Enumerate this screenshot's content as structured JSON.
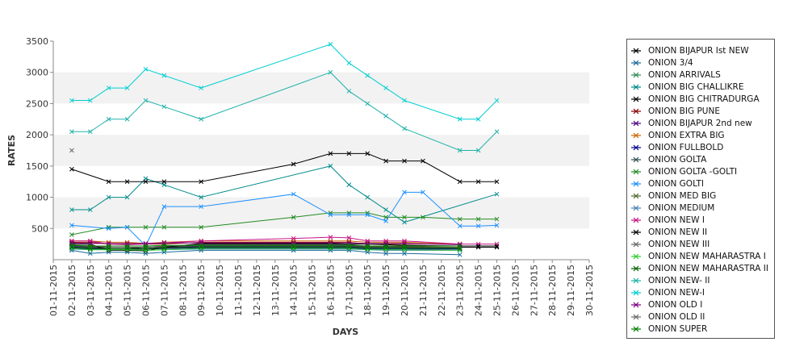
{
  "chart_data": {
    "type": "line",
    "title": "",
    "xlabel": "DAYS",
    "ylabel": "RATES",
    "ylim": [
      0,
      3500
    ],
    "yticks": [
      500,
      1000,
      1500,
      2000,
      2500,
      3000,
      3500
    ],
    "legend_position": "right",
    "x": [
      "01-11-2015",
      "02-11-2015",
      "03-11-2015",
      "04-11-2015",
      "05-11-2015",
      "06-11-2015",
      "07-11-2015",
      "08-11-2015",
      "09-11-2015",
      "10-11-2015",
      "11-11-2015",
      "12-11-2015",
      "13-11-2015",
      "14-11-2015",
      "15-11-2015",
      "16-11-2015",
      "17-11-2015",
      "18-11-2015",
      "19-11-2015",
      "20-11-2015",
      "21-11-2015",
      "22-11-2015",
      "23-11-2015",
      "24-11-2015",
      "25-11-2015",
      "26-11-2015",
      "27-11-2015",
      "28-11-2015",
      "29-11-2015",
      "30-11-2015"
    ],
    "series": [
      {
        "name": " ONION BIJAPUR Ist NEW",
        "color": "#000000",
        "values": [
          null,
          250,
          200,
          200,
          200,
          180,
          200,
          null,
          250,
          null,
          null,
          null,
          null,
          250,
          null,
          250,
          250,
          200,
          200,
          200,
          200,
          null,
          200,
          200,
          200,
          null,
          null,
          null,
          null,
          null
        ]
      },
      {
        "name": "ONION 3/4",
        "color": "#1a6a9a",
        "values": [
          null,
          150,
          100,
          120,
          120,
          100,
          120,
          null,
          150,
          null,
          null,
          null,
          null,
          150,
          null,
          150,
          150,
          120,
          100,
          100,
          null,
          null,
          80,
          null,
          null,
          null,
          null,
          null,
          null,
          null
        ]
      },
      {
        "name": "ONION ARRIVALS",
        "color": "#2e8b57",
        "values": [
          null,
          200,
          180,
          180,
          180,
          180,
          200,
          null,
          200,
          null,
          null,
          null,
          null,
          200,
          null,
          200,
          200,
          180,
          180,
          180,
          null,
          null,
          180,
          null,
          null,
          null,
          null,
          null,
          null,
          null
        ]
      },
      {
        "name": "ONION BIG CHALLIKRE",
        "color": "#008b8b",
        "values": [
          null,
          800,
          800,
          1000,
          1000,
          1300,
          1200,
          null,
          1000,
          null,
          null,
          null,
          null,
          null,
          null,
          1500,
          1200,
          1000,
          800,
          600,
          null,
          null,
          null,
          null,
          1050,
          null,
          null,
          null,
          null,
          null
        ]
      },
      {
        "name": "ONION BIG CHITRADURGA",
        "color": "#000000",
        "values": [
          null,
          1450,
          null,
          1250,
          1250,
          1250,
          1250,
          null,
          1250,
          null,
          null,
          null,
          null,
          1530,
          null,
          1700,
          1700,
          1700,
          1580,
          1580,
          1580,
          null,
          1250,
          1250,
          1250,
          null,
          null,
          null,
          null,
          null
        ]
      },
      {
        "name": "ONION BIG PUNE",
        "color": "#8b0000",
        "values": [
          null,
          280,
          280,
          250,
          250,
          250,
          250,
          null,
          280,
          null,
          null,
          null,
          null,
          280,
          null,
          280,
          280,
          250,
          250,
          250,
          null,
          null,
          250,
          null,
          null,
          null,
          null,
          null,
          null,
          null
        ]
      },
      {
        "name": "ONION BIJAPUR 2nd new",
        "color": "#4b0082",
        "values": [
          null,
          220,
          200,
          180,
          180,
          180,
          200,
          null,
          220,
          null,
          null,
          null,
          null,
          220,
          null,
          220,
          220,
          200,
          200,
          200,
          null,
          null,
          200,
          null,
          null,
          null,
          null,
          null,
          null,
          null
        ]
      },
      {
        "name": "ONION EXTRA BIG",
        "color": "#cd6600",
        "values": [
          null,
          300,
          300,
          280,
          280,
          260,
          280,
          null,
          300,
          null,
          null,
          null,
          null,
          300,
          null,
          300,
          300,
          280,
          280,
          280,
          null,
          null,
          250,
          null,
          null,
          null,
          null,
          null,
          null,
          null
        ]
      },
      {
        "name": "ONION FULLBOLD",
        "color": "#00008b",
        "values": [
          null,
          190,
          170,
          170,
          170,
          170,
          180,
          null,
          190,
          null,
          null,
          null,
          null,
          190,
          null,
          190,
          190,
          170,
          170,
          170,
          null,
          null,
          170,
          null,
          null,
          null,
          null,
          null,
          null,
          null
        ]
      },
      {
        "name": "ONION GOLTA",
        "color": "#2f4f4f",
        "values": [
          null,
          210,
          190,
          170,
          170,
          170,
          190,
          null,
          210,
          null,
          null,
          null,
          null,
          210,
          null,
          210,
          210,
          190,
          190,
          190,
          null,
          null,
          190,
          null,
          null,
          null,
          null,
          null,
          null,
          null
        ]
      },
      {
        "name": "ONION GOLTA -GOLTI",
        "color": "#228b22",
        "values": [
          null,
          400,
          null,
          520,
          520,
          520,
          520,
          null,
          520,
          null,
          null,
          null,
          null,
          680,
          null,
          750,
          750,
          750,
          680,
          680,
          680,
          null,
          650,
          650,
          650,
          null,
          null,
          null,
          null,
          null
        ]
      },
      {
        "name": "ONION GOLTI",
        "color": "#1e90ff",
        "values": [
          null,
          550,
          null,
          500,
          520,
          220,
          850,
          null,
          850,
          null,
          null,
          null,
          null,
          1050,
          null,
          720,
          720,
          720,
          620,
          1080,
          1080,
          null,
          540,
          540,
          550,
          null,
          null,
          null,
          null,
          null
        ]
      },
      {
        "name": "ONION MED BIG",
        "color": "#556b2f",
        "values": [
          null,
          230,
          210,
          200,
          200,
          200,
          210,
          null,
          230,
          null,
          null,
          null,
          null,
          230,
          null,
          230,
          230,
          210,
          210,
          210,
          null,
          null,
          200,
          null,
          null,
          null,
          null,
          null,
          null,
          null
        ]
      },
      {
        "name": "ONION MEDIUM",
        "color": "#4682b4",
        "values": [
          null,
          170,
          160,
          160,
          160,
          150,
          160,
          null,
          170,
          null,
          null,
          null,
          null,
          170,
          null,
          170,
          170,
          160,
          150,
          150,
          null,
          null,
          150,
          null,
          null,
          null,
          null,
          null,
          null,
          null
        ]
      },
      {
        "name": "ONION NEW I",
        "color": "#c71585",
        "values": [
          null,
          300,
          300,
          250,
          240,
          250,
          270,
          null,
          300,
          null,
          null,
          null,
          null,
          340,
          null,
          360,
          350,
          300,
          300,
          300,
          null,
          null,
          250,
          250,
          250,
          null,
          null,
          null,
          null,
          null
        ]
      },
      {
        "name": "ONION NEW II",
        "color": "#000000",
        "values": [
          null,
          260,
          250,
          150,
          150,
          140,
          200,
          null,
          260,
          null,
          null,
          null,
          null,
          260,
          null,
          260,
          250,
          250,
          240,
          230,
          null,
          null,
          220,
          220,
          220,
          null,
          null,
          null,
          null,
          null
        ]
      },
      {
        "name": "ONION NEW III",
        "color": "#666666",
        "values": [
          null,
          240,
          230,
          200,
          200,
          200,
          220,
          null,
          240,
          null,
          null,
          null,
          null,
          240,
          null,
          240,
          240,
          220,
          220,
          220,
          null,
          null,
          220,
          null,
          null,
          null,
          null,
          null,
          null,
          null
        ]
      },
      {
        "name": "ONION NEW MAHARASTRA I",
        "color": "#32cd32",
        "values": [
          null,
          180,
          160,
          160,
          160,
          150,
          160,
          null,
          180,
          null,
          null,
          null,
          null,
          180,
          null,
          180,
          180,
          160,
          160,
          160,
          null,
          null,
          150,
          null,
          null,
          null,
          null,
          null,
          null,
          null
        ]
      },
      {
        "name": "ONION NEW MAHARASTRA II",
        "color": "#006400",
        "values": [
          null,
          200,
          180,
          180,
          180,
          180,
          190,
          null,
          200,
          null,
          null,
          null,
          null,
          200,
          null,
          200,
          200,
          190,
          190,
          190,
          null,
          null,
          180,
          null,
          null,
          null,
          null,
          null,
          null,
          null
        ]
      },
      {
        "name": "ONION NEW- II",
        "color": "#20b2aa",
        "values": [
          null,
          2050,
          2050,
          2250,
          2250,
          2550,
          2450,
          null,
          2250,
          null,
          null,
          null,
          null,
          null,
          null,
          3000,
          2700,
          2500,
          2300,
          2100,
          null,
          null,
          1750,
          1750,
          2050,
          null,
          null,
          null,
          null,
          null
        ]
      },
      {
        "name": "ONION NEW-I",
        "color": "#00ced1",
        "values": [
          null,
          2550,
          2550,
          2750,
          2750,
          3050,
          2950,
          null,
          2750,
          null,
          null,
          null,
          null,
          null,
          null,
          3450,
          3150,
          2950,
          2750,
          2550,
          null,
          null,
          2250,
          2250,
          2550,
          null,
          null,
          null,
          null,
          null
        ]
      },
      {
        "name": "ONION OLD I",
        "color": "#800080",
        "values": [
          null,
          270,
          260,
          260,
          260,
          260,
          270,
          null,
          270,
          null,
          null,
          null,
          null,
          270,
          null,
          270,
          270,
          260,
          260,
          260,
          null,
          null,
          240,
          null,
          null,
          null,
          null,
          null,
          null,
          null
        ]
      },
      {
        "name": "ONION OLD II",
        "color": "#696969",
        "values": [
          null,
          1750,
          null,
          null,
          null,
          null,
          null,
          null,
          null,
          null,
          null,
          null,
          null,
          null,
          null,
          null,
          null,
          null,
          null,
          null,
          null,
          null,
          null,
          null,
          null,
          null,
          null,
          null,
          null,
          null
        ]
      },
      {
        "name": "ONION SUPER",
        "color": "#008000",
        "values": [
          null,
          230,
          220,
          220,
          220,
          220,
          230,
          null,
          230,
          null,
          null,
          null,
          null,
          230,
          null,
          230,
          230,
          220,
          220,
          220,
          null,
          null,
          220,
          null,
          null,
          null,
          null,
          null,
          null,
          null
        ]
      }
    ]
  }
}
